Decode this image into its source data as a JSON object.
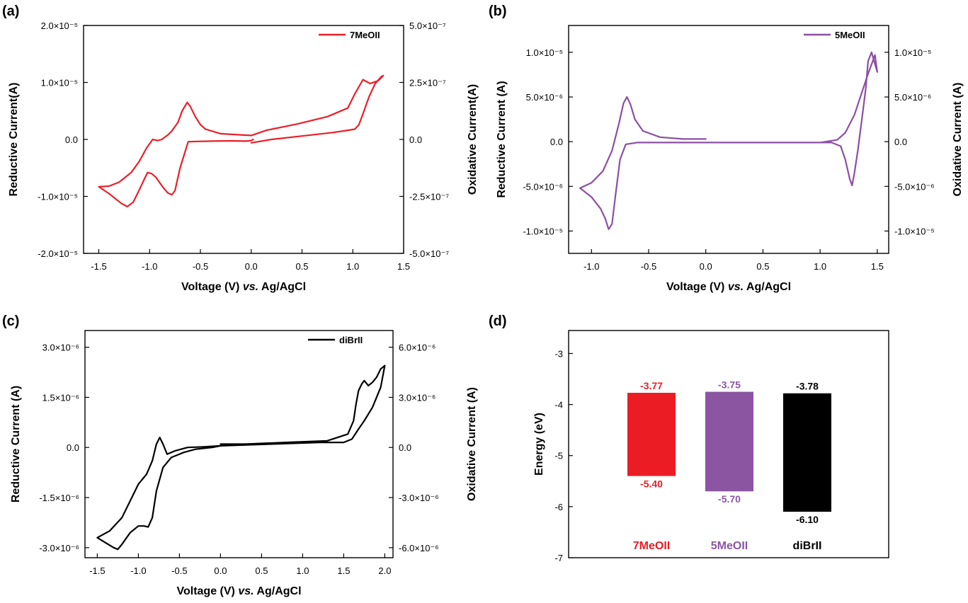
{
  "panels": [
    "(a)",
    "(b)",
    "(c)",
    "(d)"
  ],
  "chart_data": [
    {
      "type": "line",
      "panel": "(a)",
      "xlabel_prefix": "Voltage (V) ",
      "xlabel_italic": "vs.",
      "xlabel_suffix": " Ag/AgCl",
      "ylabel": "Reductive Current(A)",
      "ylabel_right": "Oxidative Current(A)",
      "xlim": [
        -1.65,
        1.5
      ],
      "ylim": [
        -2e-05,
        2e-05
      ],
      "ylim_right": [
        -5e-07,
        5e-07
      ],
      "x_ticks": [
        "-1.5",
        "-1.0",
        "-0.5",
        "0.0",
        "0.5",
        "1.0",
        "1.5"
      ],
      "y_ticks": [
        "-2.0×10⁻⁵",
        "-1.0×10⁻⁵",
        "0.0",
        "1.0×10⁻⁵",
        "2.0×10⁻⁵"
      ],
      "y_ticks_right": [
        "-5.0×10⁻⁷",
        "-2.5×10⁻⁷",
        "0.0",
        "2.5×10⁻⁷",
        "5.0×10⁻⁷"
      ],
      "legend": {
        "label": "7MeOII",
        "position": "top-right"
      },
      "series": [
        {
          "name": "7MeOII",
          "color": "#e8202a",
          "x": [
            0.0,
            0.2,
            0.5,
            0.8,
            0.95,
            1.02,
            1.06,
            1.1,
            1.16,
            1.22,
            1.28,
            1.3,
            1.25,
            1.17,
            1.1,
            1.02,
            0.95,
            0.75,
            0.45,
            0.15,
            0.0,
            -0.1,
            -0.3,
            -0.45,
            -0.5,
            -0.55,
            -0.6,
            -0.63,
            -0.68,
            -0.72,
            -0.78,
            -0.82,
            -0.88,
            -0.92,
            -0.97,
            -1.03,
            -1.1,
            -1.18,
            -1.3,
            -1.4,
            -1.5,
            -1.4,
            -1.28,
            -1.22,
            -1.16,
            -1.1,
            -1.05,
            -1.02,
            -0.98,
            -0.94,
            -0.9,
            -0.86,
            -0.82,
            -0.78,
            -0.75,
            -0.7,
            -0.62,
            -0.4,
            -0.2,
            -0.05,
            0.0,
            0.02
          ],
          "y": [
            -6e-07,
            0.0,
            6e-07,
            1.2e-06,
            1.6e-06,
            1.8e-06,
            2.6e-06,
            4.5e-06,
            7.5e-06,
            9.8e-06,
            1.1e-05,
            1.12e-05,
            1.03e-05,
            9.8e-06,
            1.05e-05,
            8e-06,
            5.5e-06,
            4e-06,
            2.7e-06,
            1.6e-06,
            7e-07,
            8e-07,
            1e-06,
            1.8e-06,
            2.6e-06,
            4e-06,
            5.8e-06,
            6.5e-06,
            5e-06,
            3e-06,
            1.5e-06,
            8e-07,
            0.0,
            -2e-07,
            0.0,
            -1.5e-06,
            -3.8e-06,
            -5.8e-06,
            -7.5e-06,
            -8.2e-06,
            -8.3e-06,
            -9.5e-06,
            -1.12e-05,
            -1.18e-05,
            -1.1e-05,
            -8.8e-06,
            -6.9e-06,
            -5.8e-06,
            -6e-06,
            -6.6e-06,
            -7.6e-06,
            -8.6e-06,
            -9.4e-06,
            -9.7e-06,
            -9e-06,
            -5e-06,
            -4e-07,
            -3e-07,
            -2.5e-07,
            -3e-07,
            -2e-07,
            0.0
          ]
        }
      ]
    },
    {
      "type": "line",
      "panel": "(b)",
      "xlabel_prefix": "Voltage (V) ",
      "xlabel_italic": "vs.",
      "xlabel_suffix": " Ag/AgCl",
      "ylabel": "Reductive Current (A)",
      "ylabel_right": "Oxidative Current (A)",
      "xlim": [
        -1.2,
        1.6
      ],
      "ylim": [
        -1.25e-05,
        1.3e-05
      ],
      "ylim_right": [
        -1.25e-05,
        1.3e-05
      ],
      "x_ticks": [
        "-1.0",
        "-0.5",
        "0.0",
        "0.5",
        "1.0",
        "1.5"
      ],
      "y_ticks": [
        "-1.0×10⁻⁵",
        "-5.0×10⁻⁶",
        "0.0",
        "5.0×10⁻⁶",
        "1.0×10⁻⁵"
      ],
      "y_ticks_right": [
        "-1.0×10⁻⁵",
        "-5.0×10⁻⁶",
        "0.0",
        "5.0×10⁻⁶",
        "1.0×10⁻⁵"
      ],
      "legend": {
        "label": "5MeOII",
        "position": "top-right"
      },
      "series": [
        {
          "name": "5MeOII",
          "color": "#8c4fa3",
          "x": [
            0.0,
            -0.2,
            -0.4,
            -0.55,
            -0.62,
            -0.66,
            -0.69,
            -0.72,
            -0.76,
            -0.82,
            -0.9,
            -1.0,
            -1.1,
            -1.0,
            -0.92,
            -0.88,
            -0.85,
            -0.82,
            -0.79,
            -0.75,
            -0.7,
            -0.6,
            -0.3,
            0.0,
            0.4,
            0.8,
            1.1,
            1.18,
            1.22,
            1.26,
            1.28,
            1.3,
            1.33,
            1.37,
            1.4,
            1.42,
            1.45,
            1.5,
            1.48,
            1.42,
            1.3,
            1.22,
            1.15,
            1.0,
            0.5,
            0.0
          ],
          "y": [
            3e-07,
            3e-07,
            5e-07,
            1.2e-06,
            2.5e-06,
            4.2e-06,
            5e-06,
            4.3e-06,
            2e-06,
            -1e-06,
            -3.3e-06,
            -4.6e-06,
            -5.2e-06,
            -6.2e-06,
            -7.5e-06,
            -8.6e-06,
            -9.8e-06,
            -9.2e-06,
            -6e-06,
            -2e-06,
            -3e-07,
            -1e-07,
            -1e-07,
            -1e-07,
            -1e-07,
            -1e-07,
            -1e-07,
            -5e-07,
            -2e-06,
            -4.2e-06,
            -4.9e-06,
            -3.5e-06,
            -1e-06,
            3e-06,
            6e-06,
            9e-06,
            1e-05,
            7.8e-06,
            9.7e-06,
            7.6e-06,
            3e-06,
            1e-06,
            2e-07,
            -1e-07,
            -1e-07,
            -1e-07
          ]
        }
      ]
    },
    {
      "type": "line",
      "panel": "(c)",
      "xlabel_prefix": "Voltage (V) ",
      "xlabel_italic": "vs.",
      "xlabel_suffix": " Ag/AgCl",
      "ylabel": "Reductive Current (A)",
      "ylabel_right": "Oxidative Current (A)",
      "xlim": [
        -1.65,
        2.1
      ],
      "ylim": [
        -3.3e-06,
        3.5e-06
      ],
      "ylim_right": [
        -6.6e-06,
        7e-06
      ],
      "x_ticks": [
        "-1.5",
        "-1.0",
        "-0.5",
        "0.0",
        "0.5",
        "1.0",
        "1.5",
        "2.0"
      ],
      "y_ticks": [
        "-3.0×10⁻⁶",
        "-1.5×10⁻⁶",
        "0.0",
        "1.5×10⁻⁶",
        "3.0×10⁻⁶"
      ],
      "y_ticks_right": [
        "-6.0×10⁻⁶",
        "-3.0×10⁻⁶",
        "0.0",
        "3.0×10⁻⁶",
        "6.0×10⁻⁶"
      ],
      "legend": {
        "label": "diBrII",
        "position": "top-right"
      },
      "series": [
        {
          "name": "diBrII",
          "color": "#000000",
          "x": [
            0.0,
            0.3,
            0.8,
            1.3,
            1.55,
            1.62,
            1.65,
            1.68,
            1.72,
            1.75,
            1.8,
            1.85,
            1.9,
            1.95,
            2.0,
            1.95,
            1.85,
            1.75,
            1.68,
            1.6,
            1.5,
            1.2,
            0.6,
            0.0,
            -0.2,
            -0.4,
            -0.55,
            -0.65,
            -0.7,
            -0.74,
            -0.78,
            -0.83,
            -0.9,
            -1.0,
            -1.1,
            -1.2,
            -1.35,
            -1.5,
            -1.4,
            -1.3,
            -1.25,
            -1.2,
            -1.1,
            -1.0,
            -0.93,
            -0.88,
            -0.83,
            -0.78,
            -0.7,
            -0.6,
            -0.45,
            -0.3,
            -0.1,
            0.0
          ],
          "y": [
            1e-07,
            1e-07,
            1.5e-07,
            2e-07,
            4e-07,
            8e-07,
            1.3e-06,
            1.7e-06,
            1.9e-06,
            2e-06,
            1.85e-06,
            1.95e-06,
            2.1e-06,
            2.35e-06,
            2.45e-06,
            1.8e-06,
            1.2e-06,
            8e-07,
            5.5e-07,
            2.5e-07,
            1.5e-07,
            1.5e-07,
            1e-07,
            5e-08,
            2e-08,
            0.0,
            -1e-07,
            -2e-07,
            1e-07,
            3e-07,
            1e-07,
            -4e-07,
            -8e-07,
            -1.1e-06,
            -1.6e-06,
            -2.1e-06,
            -2.5e-06,
            -2.7e-06,
            -2.85e-06,
            -3e-06,
            -3.05e-06,
            -2.9e-06,
            -2.55e-06,
            -2.35e-06,
            -2.35e-06,
            -2.38e-06,
            -2.1e-06,
            -1.3e-06,
            -6e-07,
            -3e-07,
            -1.5e-07,
            -5e-08,
            0.0,
            5e-08
          ]
        }
      ]
    },
    {
      "type": "bar",
      "panel": "(d)",
      "ylabel": "Energy (eV)",
      "ylim": [
        -7,
        -2.55
      ],
      "y_ticks": [
        "-7",
        "-6",
        "-5",
        "-4",
        "-3"
      ],
      "categories": [
        "7MeOII",
        "5MeOII",
        "diBrII"
      ],
      "colors": [
        "#ec1c24",
        "#8b55a2",
        "#000000"
      ],
      "lumo": [
        -3.77,
        -3.75,
        -3.78
      ],
      "homo": [
        -5.4,
        -5.7,
        -6.1
      ],
      "lumo_labels": [
        "-3.77",
        "-3.75",
        "-3.78"
      ],
      "homo_labels": [
        "-5.40",
        "-5.70",
        "-6.10"
      ]
    }
  ]
}
